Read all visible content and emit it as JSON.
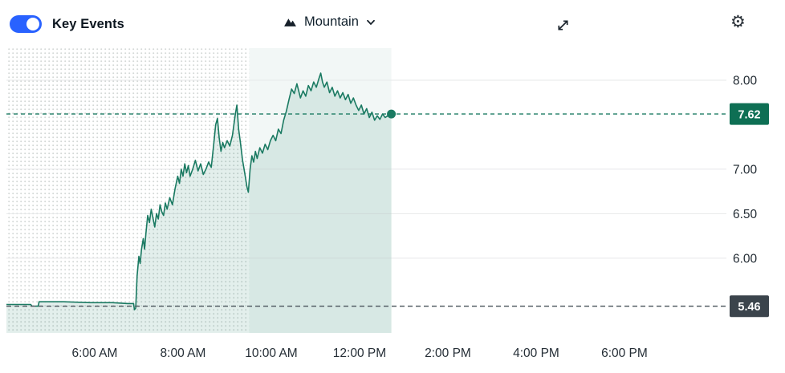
{
  "header": {
    "key_events": {
      "label": "Key Events",
      "state": "on",
      "toggle_color": "#2962ff"
    },
    "chart_type": {
      "label": "Mountain"
    }
  },
  "chart_data": {
    "type": "area",
    "style": "mountain",
    "title": "",
    "x_axis": {
      "unit": "time-of-day",
      "range_hours": [
        4.0,
        20.31
      ],
      "ticks": [
        {
          "h": 6,
          "label": "6:00 AM"
        },
        {
          "h": 8,
          "label": "8:00 AM"
        },
        {
          "h": 10,
          "label": "10:00 AM"
        },
        {
          "h": 12,
          "label": "12:00 PM"
        },
        {
          "h": 14,
          "label": "2:00 PM"
        },
        {
          "h": 16,
          "label": "4:00 PM"
        },
        {
          "h": 18,
          "label": "6:00 PM"
        }
      ]
    },
    "y_axis": {
      "side": "right",
      "range": [
        5.16,
        8.36
      ],
      "ticks": [
        {
          "v": 8.0,
          "label": "8.00"
        },
        {
          "v": 7.0,
          "label": "7.00"
        },
        {
          "v": 6.5,
          "label": "6.50"
        },
        {
          "v": 6.0,
          "label": "6.00"
        }
      ]
    },
    "current_price": {
      "value": 7.62,
      "label": "7.62"
    },
    "previous_close": {
      "value": 5.46,
      "label": "5.46"
    },
    "sessions": {
      "premarket_start_hour": 4.0,
      "market_open_hour": 9.5,
      "last_trade_hour": 12.72
    },
    "colors": {
      "line": "#1a7a62",
      "area_fill": "rgba(26,122,98,0.12)",
      "session_tint": "rgba(26,122,98,0.06)",
      "current_badge": "#0e6f54",
      "prev_badge": "#3b444c",
      "current_line": "#1a7a62",
      "prev_line": "#555f66",
      "grid": "#e7e8ea",
      "dots": "#d3d8d6"
    },
    "series": [
      {
        "name": "price",
        "points": [
          [
            4.0,
            5.48
          ],
          [
            4.55,
            5.48
          ],
          [
            4.58,
            5.46
          ],
          [
            4.72,
            5.46
          ],
          [
            4.74,
            5.51
          ],
          [
            5.3,
            5.51
          ],
          [
            5.9,
            5.5
          ],
          [
            6.4,
            5.5
          ],
          [
            6.75,
            5.49
          ],
          [
            6.88,
            5.49
          ],
          [
            6.9,
            5.42
          ],
          [
            6.93,
            5.44
          ],
          [
            6.96,
            5.8
          ],
          [
            7.0,
            6.02
          ],
          [
            7.03,
            5.94
          ],
          [
            7.06,
            6.1
          ],
          [
            7.1,
            6.22
          ],
          [
            7.13,
            6.1
          ],
          [
            7.16,
            6.28
          ],
          [
            7.2,
            6.48
          ],
          [
            7.24,
            6.4
          ],
          [
            7.28,
            6.55
          ],
          [
            7.32,
            6.45
          ],
          [
            7.36,
            6.35
          ],
          [
            7.4,
            6.5
          ],
          [
            7.44,
            6.44
          ],
          [
            7.48,
            6.6
          ],
          [
            7.52,
            6.52
          ],
          [
            7.56,
            6.48
          ],
          [
            7.6,
            6.62
          ],
          [
            7.64,
            6.55
          ],
          [
            7.7,
            6.68
          ],
          [
            7.76,
            6.6
          ],
          [
            7.82,
            6.78
          ],
          [
            7.88,
            6.92
          ],
          [
            7.92,
            6.84
          ],
          [
            7.96,
            7.0
          ],
          [
            8.0,
            6.92
          ],
          [
            8.04,
            7.06
          ],
          [
            8.08,
            6.96
          ],
          [
            8.12,
            7.04
          ],
          [
            8.16,
            6.92
          ],
          [
            8.22,
            7.0
          ],
          [
            8.28,
            7.1
          ],
          [
            8.34,
            6.98
          ],
          [
            8.4,
            7.06
          ],
          [
            8.46,
            6.94
          ],
          [
            8.52,
            7.0
          ],
          [
            8.58,
            7.08
          ],
          [
            8.64,
            7.02
          ],
          [
            8.7,
            7.3
          ],
          [
            8.74,
            7.5
          ],
          [
            8.78,
            7.57
          ],
          [
            8.82,
            7.35
          ],
          [
            8.86,
            7.2
          ],
          [
            8.9,
            7.3
          ],
          [
            8.94,
            7.24
          ],
          [
            9.0,
            7.32
          ],
          [
            9.06,
            7.26
          ],
          [
            9.12,
            7.38
          ],
          [
            9.18,
            7.6
          ],
          [
            9.22,
            7.72
          ],
          [
            9.26,
            7.45
          ],
          [
            9.3,
            7.3
          ],
          [
            9.35,
            7.1
          ],
          [
            9.4,
            6.95
          ],
          [
            9.45,
            6.8
          ],
          [
            9.48,
            6.74
          ],
          [
            9.52,
            7.0
          ],
          [
            9.56,
            7.15
          ],
          [
            9.6,
            7.08
          ],
          [
            9.64,
            7.2
          ],
          [
            9.68,
            7.12
          ],
          [
            9.74,
            7.24
          ],
          [
            9.8,
            7.18
          ],
          [
            9.86,
            7.28
          ],
          [
            9.92,
            7.22
          ],
          [
            9.98,
            7.32
          ],
          [
            10.04,
            7.38
          ],
          [
            10.1,
            7.32
          ],
          [
            10.16,
            7.45
          ],
          [
            10.22,
            7.4
          ],
          [
            10.28,
            7.55
          ],
          [
            10.34,
            7.65
          ],
          [
            10.4,
            7.78
          ],
          [
            10.46,
            7.9
          ],
          [
            10.52,
            7.85
          ],
          [
            10.58,
            7.96
          ],
          [
            10.62,
            7.88
          ],
          [
            10.66,
            7.8
          ],
          [
            10.72,
            7.88
          ],
          [
            10.78,
            7.82
          ],
          [
            10.84,
            7.94
          ],
          [
            10.9,
            7.88
          ],
          [
            10.96,
            7.98
          ],
          [
            11.02,
            7.92
          ],
          [
            11.08,
            8.02
          ],
          [
            11.12,
            8.08
          ],
          [
            11.16,
            7.98
          ],
          [
            11.2,
            7.92
          ],
          [
            11.26,
            7.98
          ],
          [
            11.32,
            7.86
          ],
          [
            11.38,
            7.92
          ],
          [
            11.44,
            7.82
          ],
          [
            11.5,
            7.88
          ],
          [
            11.56,
            7.8
          ],
          [
            11.62,
            7.86
          ],
          [
            11.68,
            7.78
          ],
          [
            11.74,
            7.84
          ],
          [
            11.8,
            7.74
          ],
          [
            11.86,
            7.8
          ],
          [
            11.92,
            7.72
          ],
          [
            11.98,
            7.66
          ],
          [
            12.04,
            7.72
          ],
          [
            12.1,
            7.62
          ],
          [
            12.16,
            7.68
          ],
          [
            12.22,
            7.58
          ],
          [
            12.28,
            7.64
          ],
          [
            12.34,
            7.55
          ],
          [
            12.4,
            7.6
          ],
          [
            12.46,
            7.56
          ],
          [
            12.52,
            7.62
          ],
          [
            12.58,
            7.58
          ],
          [
            12.64,
            7.6
          ],
          [
            12.72,
            7.62
          ]
        ]
      }
    ]
  }
}
